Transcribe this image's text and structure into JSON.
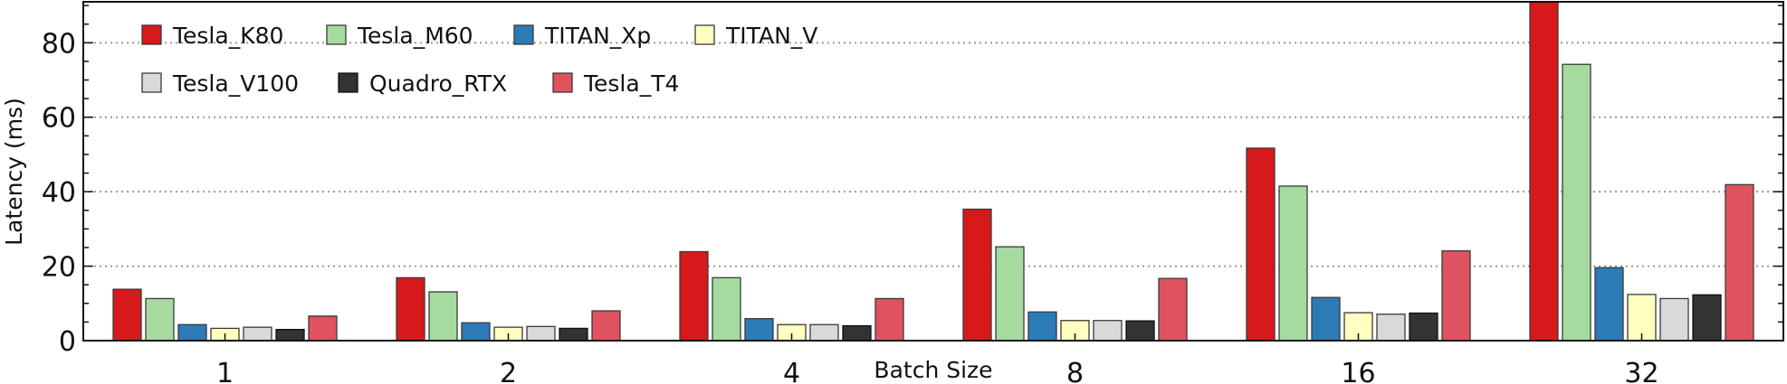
{
  "chart_data": {
    "type": "bar",
    "xlabel": "Batch Size",
    "ylabel": "Latency (ms)",
    "ylim": [
      0,
      91
    ],
    "yticks": [
      0,
      20,
      40,
      60,
      80
    ],
    "grid": "horizontal-dotted",
    "legend_position": "top-left",
    "categories": [
      "1",
      "2",
      "4",
      "8",
      "16",
      "32"
    ],
    "series": [
      {
        "name": "Tesla_K80",
        "color": "#d7191c",
        "values": [
          13.8,
          16.9,
          23.9,
          35.3,
          51.7,
          91
        ]
      },
      {
        "name": "Tesla_M60",
        "color": "#a6dba0",
        "values": [
          11.3,
          13.1,
          16.9,
          25.2,
          41.5,
          74.2
        ]
      },
      {
        "name": "TITAN_Xp",
        "color": "#2c7bb6",
        "values": [
          4.3,
          4.8,
          5.9,
          7.7,
          11.6,
          19.6
        ]
      },
      {
        "name": "TITAN_V",
        "color": "#ffffbf",
        "values": [
          3.3,
          3.6,
          4.3,
          5.4,
          7.5,
          12.4
        ]
      },
      {
        "name": "Tesla_V100",
        "color": "#d9d9d9",
        "values": [
          3.6,
          3.8,
          4.3,
          5.4,
          7.1,
          11.3
        ]
      },
      {
        "name": "Quadro_RTX",
        "color": "#333333",
        "values": [
          3.0,
          3.3,
          4.0,
          5.3,
          7.4,
          12.3
        ]
      },
      {
        "name": "Tesla_T4",
        "color": "#e05260",
        "values": [
          6.6,
          8.0,
          11.3,
          16.7,
          24.1,
          41.9
        ]
      }
    ]
  }
}
